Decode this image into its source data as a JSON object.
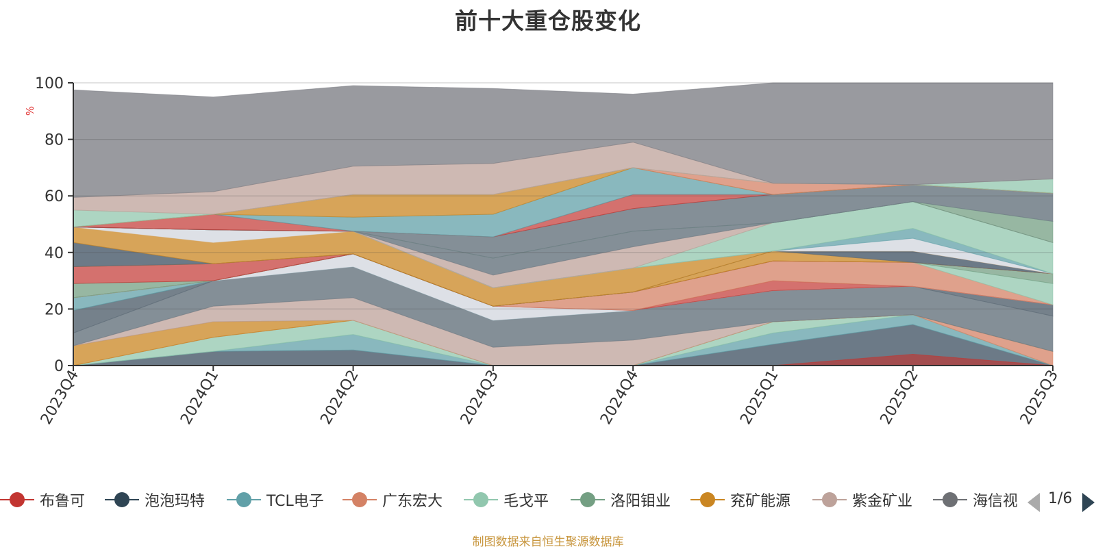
{
  "title": "前十大重仓股变化",
  "footnote": "制图数据来自恒生聚源数据库",
  "pager": {
    "text": "1/6"
  },
  "chart_data": {
    "type": "area",
    "title": "前十大重仓股变化",
    "ylabel": "%",
    "ylim": [
      0,
      100
    ],
    "yticks": [
      0,
      20,
      40,
      60,
      80,
      100
    ],
    "grid": true,
    "categories": [
      "2023Q4",
      "2024Q1",
      "2024Q2",
      "2024Q3",
      "2024Q4",
      "2025Q1",
      "2025Q2",
      "2025Q3"
    ],
    "legend_visible": [
      "布鲁可",
      "泡泡玛特",
      "TCL电子",
      "广东宏大",
      "毛戈平",
      "洛阳钼业",
      "兖矿能源",
      "紫金矿业",
      "海信视"
    ],
    "legend_colors": [
      "#c23531",
      "#2f4554",
      "#61a0a8",
      "#d48265",
      "#91c7ae",
      "#749f83",
      "#ca8622",
      "#bda29a",
      "#6e7074"
    ],
    "bands": [
      {
        "color": "#5c6b7a",
        "opacity": 0.9,
        "upper": [
          0,
          5,
          5.5,
          0,
          0,
          7.5,
          14.5,
          0
        ],
        "lower": [
          0,
          0,
          0,
          0,
          0,
          0,
          0,
          0
        ]
      },
      {
        "color": "#c23531",
        "opacity": 0.65,
        "upper": [
          0,
          0,
          0,
          0,
          0,
          0,
          4,
          0
        ],
        "lower": [
          0,
          0,
          0,
          0,
          0,
          0,
          0,
          0
        ]
      },
      {
        "color": "#61a0a8",
        "opacity": 0.75,
        "upper": [
          0,
          5,
          11,
          0,
          0,
          11.5,
          18,
          0
        ],
        "lower": [
          0,
          5,
          5.5,
          0,
          0,
          7.5,
          14.5,
          0
        ]
      },
      {
        "color": "#91c7ae",
        "opacity": 0.75,
        "upper": [
          0,
          10,
          16,
          0,
          0,
          15.5,
          18,
          0
        ],
        "lower": [
          0,
          5,
          11,
          0,
          0,
          11.5,
          18,
          0
        ]
      },
      {
        "color": "#d48265",
        "opacity": 0.75,
        "upper": [
          0,
          10,
          16,
          0,
          0,
          15.5,
          18,
          5
        ],
        "lower": [
          0,
          10,
          16,
          0,
          0,
          15.5,
          18,
          0
        ]
      },
      {
        "color": "#ca8622",
        "opacity": 0.75,
        "upper": [
          7,
          15.5,
          16,
          0,
          0,
          15.5,
          18,
          5
        ],
        "lower": [
          0,
          10,
          16,
          0,
          0,
          15.5,
          18,
          5
        ]
      },
      {
        "color": "#bda29a",
        "opacity": 0.75,
        "upper": [
          7,
          21,
          24,
          6.5,
          9,
          15.5,
          18,
          5
        ],
        "lower": [
          7,
          15.5,
          16,
          0,
          0,
          15.5,
          18,
          5
        ]
      },
      {
        "color": "#6e7b85",
        "opacity": 0.85,
        "upper": [
          11.5,
          30,
          35,
          16,
          19.5,
          26.5,
          28,
          17.5
        ],
        "lower": [
          7,
          21,
          24,
          6.5,
          9,
          15.5,
          18,
          5
        ]
      },
      {
        "color": "#5d6b77",
        "opacity": 0.85,
        "upper": [
          19.5,
          30,
          35,
          16,
          19.5,
          26.5,
          28,
          21.5
        ],
        "lower": [
          11.5,
          30,
          35,
          16,
          19.5,
          26.5,
          28,
          17.5
        ]
      },
      {
        "color": "#61a0a8",
        "opacity": 0.75,
        "upper": [
          24,
          30,
          39.5,
          16,
          19.5,
          26.5,
          28,
          21.5
        ],
        "lower": [
          19.5,
          30,
          35,
          16,
          19.5,
          26.5,
          28,
          21.5
        ]
      },
      {
        "color": "#dde0e6",
        "opacity": 1,
        "upper": [
          24,
          30,
          39.5,
          21,
          19.5,
          26.5,
          28,
          21.5
        ],
        "lower": [
          24,
          30,
          35,
          16,
          19.5,
          26.5,
          28,
          21.5
        ]
      },
      {
        "color": "#c23531",
        "opacity": 0.7,
        "upper": [
          24,
          30,
          39.5,
          21,
          19.5,
          30,
          28,
          21.5
        ],
        "lower": [
          24,
          30,
          39.5,
          21,
          19.5,
          26.5,
          28,
          21.5
        ]
      },
      {
        "color": "#d48265",
        "opacity": 0.75,
        "upper": [
          24,
          30,
          39.5,
          21,
          26,
          37,
          36.5,
          21.5
        ],
        "lower": [
          24,
          30,
          39.5,
          21,
          19.5,
          30,
          28,
          21.5
        ]
      },
      {
        "color": "#91c7ae",
        "opacity": 0.75,
        "upper": [
          24,
          30,
          39.5,
          21,
          26,
          37,
          36.5,
          29
        ],
        "lower": [
          24,
          30,
          39.5,
          21,
          26,
          37,
          36.5,
          21.5
        ]
      },
      {
        "color": "#749f83",
        "opacity": 0.75,
        "upper": [
          29,
          30,
          39.5,
          21,
          26,
          37,
          36.5,
          32.5
        ],
        "lower": [
          24,
          30,
          39.5,
          21,
          26,
          37,
          36.5,
          29
        ]
      },
      {
        "color": "#c23531",
        "opacity": 0.7,
        "upper": [
          35,
          36,
          39.5,
          21,
          26,
          37,
          36.5,
          32.5
        ],
        "lower": [
          29,
          30,
          39.5,
          21,
          26,
          37,
          36.5,
          32.5
        ]
      },
      {
        "color": "#ca8622",
        "opacity": 0.75,
        "upper": [
          35,
          36,
          39.5,
          21,
          26,
          40.5,
          36.5,
          32.5
        ],
        "lower": [
          35,
          36,
          39.5,
          21,
          26,
          37,
          36.5,
          32.5
        ]
      },
      {
        "color": "#5c6b7a",
        "opacity": 0.9,
        "upper": [
          43.5,
          36,
          39.5,
          21,
          26,
          40.5,
          40.5,
          32.5
        ],
        "lower": [
          35,
          36,
          39.5,
          21,
          26,
          40.5,
          36.5,
          32.5
        ]
      },
      {
        "color": "#ca8622",
        "opacity": 0.75,
        "upper": [
          49,
          43.5,
          47.5,
          27.5,
          34.5,
          40.5,
          40.5,
          32.5
        ],
        "lower": [
          43.5,
          36,
          39.5,
          21,
          26,
          40.5,
          40.5,
          32.5
        ]
      },
      {
        "color": "#dde0e6",
        "opacity": 1,
        "upper": [
          49,
          48,
          47.5,
          27.5,
          34.5,
          40.5,
          45,
          32.5
        ],
        "lower": [
          49,
          43.5,
          47.5,
          27.5,
          34.5,
          40.5,
          40.5,
          32.5
        ]
      },
      {
        "color": "#61a0a8",
        "opacity": 0.75,
        "upper": [
          49,
          48,
          47.5,
          27.5,
          34.5,
          40.5,
          48.5,
          32.5
        ],
        "lower": [
          49,
          48,
          47.5,
          27.5,
          34.5,
          40.5,
          45,
          32.5
        ]
      },
      {
        "color": "#91c7ae",
        "opacity": 0.75,
        "upper": [
          49,
          48,
          47.5,
          27.5,
          34.5,
          50.5,
          58,
          43.5
        ],
        "lower": [
          49,
          48,
          47.5,
          27.5,
          34.5,
          40.5,
          48.5,
          32.5
        ]
      },
      {
        "color": "#bda29a",
        "opacity": 0.75,
        "upper": [
          49,
          48,
          47.5,
          32,
          42,
          50.5,
          58,
          43.5
        ],
        "lower": [
          49,
          48,
          47.5,
          27.5,
          34.5,
          50.5,
          58,
          43.5
        ]
      },
      {
        "color": "#6e7b85",
        "opacity": 0.85,
        "upper": [
          49,
          48,
          47.5,
          38,
          47.5,
          50.5,
          58,
          43.5
        ],
        "lower": [
          49,
          48,
          47.5,
          32,
          42,
          50.5,
          58,
          43.5
        ]
      },
      {
        "color": "#749f83",
        "opacity": 0.75,
        "upper": [
          49,
          48,
          47.5,
          38,
          47.5,
          50.5,
          58,
          51
        ],
        "lower": [
          49,
          48,
          47.5,
          38,
          47.5,
          50.5,
          58,
          43.5
        ]
      },
      {
        "color": "#6e7b85",
        "opacity": 0.85,
        "upper": [
          49,
          48,
          47.5,
          45.5,
          55.5,
          60.5,
          64,
          61
        ],
        "lower": [
          49,
          48,
          47.5,
          38,
          47.5,
          50.5,
          58,
          51
        ]
      },
      {
        "color": "#c23531",
        "opacity": 0.7,
        "upper": [
          49,
          53.5,
          47.5,
          45.5,
          60.5,
          60.5,
          64,
          61
        ],
        "lower": [
          49,
          48,
          47.5,
          45.5,
          55.5,
          60.5,
          64,
          61
        ]
      },
      {
        "color": "#61a0a8",
        "opacity": 0.75,
        "upper": [
          49,
          53.5,
          52.5,
          53.5,
          70,
          60.5,
          64,
          61
        ],
        "lower": [
          49,
          53.5,
          47.5,
          45.5,
          60.5,
          60.5,
          64,
          61
        ]
      },
      {
        "color": "#ca8622",
        "opacity": 0.75,
        "upper": [
          49,
          53.5,
          60.5,
          60.5,
          70,
          60.5,
          64,
          61
        ],
        "lower": [
          49,
          53.5,
          52.5,
          53.5,
          70,
          60.5,
          64,
          61
        ]
      },
      {
        "color": "#d48265",
        "opacity": 0.75,
        "upper": [
          49,
          53.5,
          60.5,
          60.5,
          70,
          64.5,
          64,
          61
        ],
        "lower": [
          49,
          53.5,
          60.5,
          60.5,
          70,
          60.5,
          64,
          61
        ]
      },
      {
        "color": "#91c7ae",
        "opacity": 0.75,
        "upper": [
          55,
          53.5,
          60.5,
          60.5,
          70,
          64.5,
          64,
          66
        ],
        "lower": [
          49,
          53.5,
          60.5,
          60.5,
          70,
          64.5,
          64,
          61
        ]
      },
      {
        "color": "#bda29a",
        "opacity": 0.75,
        "upper": [
          59.5,
          61.5,
          70.5,
          71.5,
          79,
          64.5,
          64,
          66
        ],
        "lower": [
          55,
          53.5,
          60.5,
          60.5,
          70,
          64.5,
          64,
          66
        ]
      },
      {
        "color": "#7f8187",
        "opacity": 0.8,
        "upper": [
          97.5,
          95,
          99,
          98,
          96,
          100,
          100,
          100
        ],
        "lower": [
          59.5,
          61.5,
          70.5,
          71.5,
          79,
          64.5,
          64,
          66
        ]
      }
    ]
  }
}
